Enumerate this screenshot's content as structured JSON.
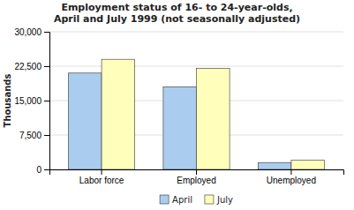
{
  "chart_data": {
    "type": "bar",
    "title": "Employment status of 16- to 24-year-olds,\nApril and July 1999 (not seasonally adjusted)",
    "ylabel": "Thousands",
    "categories": [
      "Labor force",
      "Employed",
      "Unemployed"
    ],
    "series": [
      {
        "name": "April",
        "color": "#aaccee",
        "values": [
          21000,
          18000,
          1500
        ]
      },
      {
        "name": "July",
        "color": "#ffffbb",
        "values": [
          24000,
          22000,
          2000
        ]
      }
    ],
    "ylim": [
      0,
      30000
    ],
    "yticks": [
      0,
      {
        "value": 7500,
        "label": "7,500"
      },
      {
        "value": 15000,
        "label": "15,000"
      },
      {
        "value": 22500,
        "label": "22,500"
      },
      {
        "value": 30000,
        "label": "30,000"
      }
    ],
    "grid": true,
    "legend": "bottom"
  }
}
